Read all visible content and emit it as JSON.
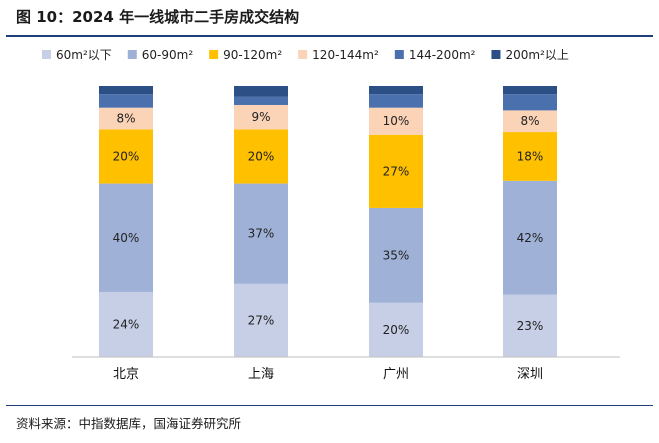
{
  "title": "图 10：2024 年一线城市二手房成交结构",
  "source": "资料来源：中指数据库，国海证券研究所",
  "chart_data": {
    "type": "bar",
    "stacked": true,
    "percent": true,
    "categories": [
      "北京",
      "上海",
      "广州",
      "深圳"
    ],
    "series": [
      {
        "name": "60m²以下",
        "color": "#c6cfe5",
        "values": [
          24,
          27,
          20,
          23
        ],
        "labels": [
          "24%",
          "27%",
          "20%",
          "23%"
        ]
      },
      {
        "name": "60-90m²",
        "color": "#9fb1d6",
        "values": [
          40,
          37,
          35,
          42
        ],
        "labels": [
          "40%",
          "37%",
          "35%",
          "42%"
        ]
      },
      {
        "name": "90-120m²",
        "color": "#ffc000",
        "values": [
          20,
          20,
          27,
          18
        ],
        "labels": [
          "20%",
          "20%",
          "27%",
          "18%"
        ]
      },
      {
        "name": "120-144m²",
        "color": "#fbd3b6",
        "values": [
          8,
          9,
          10,
          8
        ],
        "labels": [
          "8%",
          "9%",
          "10%",
          "8%"
        ]
      },
      {
        "name": "144-200m²",
        "color": "#4a70ad",
        "values": [
          5,
          3,
          5,
          6
        ],
        "labels": [
          "",
          "",
          "",
          ""
        ]
      },
      {
        "name": "200m²以上",
        "color": "#2c4f86",
        "values": [
          3,
          4,
          3,
          3
        ],
        "labels": [
          "",
          "",
          "",
          ""
        ]
      }
    ],
    "ylim": [
      0,
      100
    ],
    "grid": false,
    "legend_position": "top"
  }
}
